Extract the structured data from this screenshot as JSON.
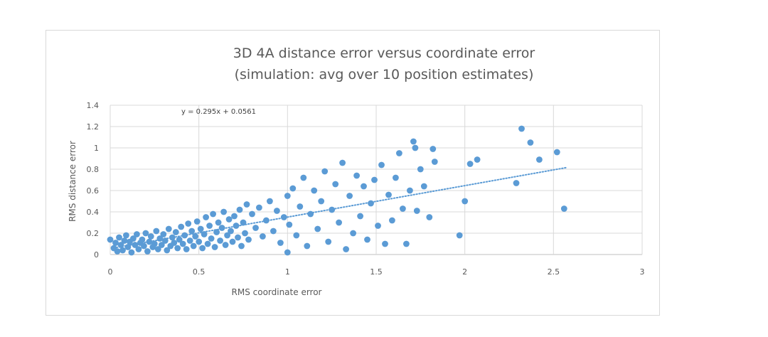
{
  "chart_data": {
    "type": "scatter",
    "title": "3D 4A distance error versus coordinate error",
    "subtitle": "(simulation: avg over 10 position estimates)",
    "xlabel": "RMS coordinate error",
    "ylabel": "RMS distance error",
    "xlim": [
      0,
      3
    ],
    "ylim": [
      0,
      1.4
    ],
    "x_ticks": [
      "0",
      "0.5",
      "1",
      "1.5",
      "2",
      "2.5",
      "3"
    ],
    "y_ticks": [
      "0",
      "0.2",
      "0.4",
      "0.6",
      "0.8",
      "1",
      "1.2",
      "1.4"
    ],
    "grid": true,
    "marker_color": "#5b9bd5",
    "trendline": {
      "type": "linear",
      "slope": 0.295,
      "intercept": 0.0561,
      "label": "y = 0.295x + 0.0561",
      "x_range": [
        0.02,
        2.57
      ],
      "style": "dotted"
    },
    "points": [
      [
        0.0,
        0.14
      ],
      [
        0.02,
        0.06
      ],
      [
        0.03,
        0.11
      ],
      [
        0.04,
        0.03
      ],
      [
        0.05,
        0.16
      ],
      [
        0.06,
        0.09
      ],
      [
        0.07,
        0.04
      ],
      [
        0.08,
        0.13
      ],
      [
        0.09,
        0.18
      ],
      [
        0.1,
        0.07
      ],
      [
        0.11,
        0.12
      ],
      [
        0.12,
        0.02
      ],
      [
        0.13,
        0.15
      ],
      [
        0.14,
        0.09
      ],
      [
        0.15,
        0.19
      ],
      [
        0.16,
        0.05
      ],
      [
        0.17,
        0.11
      ],
      [
        0.18,
        0.14
      ],
      [
        0.19,
        0.08
      ],
      [
        0.2,
        0.2
      ],
      [
        0.21,
        0.03
      ],
      [
        0.22,
        0.12
      ],
      [
        0.23,
        0.17
      ],
      [
        0.24,
        0.07
      ],
      [
        0.25,
        0.1
      ],
      [
        0.26,
        0.22
      ],
      [
        0.27,
        0.05
      ],
      [
        0.28,
        0.15
      ],
      [
        0.29,
        0.09
      ],
      [
        0.3,
        0.19
      ],
      [
        0.31,
        0.13
      ],
      [
        0.32,
        0.04
      ],
      [
        0.33,
        0.24
      ],
      [
        0.34,
        0.08
      ],
      [
        0.35,
        0.16
      ],
      [
        0.36,
        0.11
      ],
      [
        0.37,
        0.21
      ],
      [
        0.38,
        0.06
      ],
      [
        0.39,
        0.14
      ],
      [
        0.4,
        0.26
      ],
      [
        0.41,
        0.1
      ],
      [
        0.42,
        0.18
      ],
      [
        0.43,
        0.05
      ],
      [
        0.44,
        0.29
      ],
      [
        0.45,
        0.13
      ],
      [
        0.46,
        0.22
      ],
      [
        0.47,
        0.08
      ],
      [
        0.48,
        0.17
      ],
      [
        0.49,
        0.31
      ],
      [
        0.5,
        0.12
      ],
      [
        0.51,
        0.24
      ],
      [
        0.52,
        0.06
      ],
      [
        0.53,
        0.19
      ],
      [
        0.54,
        0.35
      ],
      [
        0.55,
        0.1
      ],
      [
        0.56,
        0.27
      ],
      [
        0.57,
        0.15
      ],
      [
        0.58,
        0.38
      ],
      [
        0.59,
        0.07
      ],
      [
        0.6,
        0.21
      ],
      [
        0.61,
        0.3
      ],
      [
        0.62,
        0.13
      ],
      [
        0.63,
        0.25
      ],
      [
        0.64,
        0.4
      ],
      [
        0.65,
        0.09
      ],
      [
        0.66,
        0.18
      ],
      [
        0.67,
        0.33
      ],
      [
        0.68,
        0.22
      ],
      [
        0.69,
        0.12
      ],
      [
        0.7,
        0.36
      ],
      [
        0.71,
        0.27
      ],
      [
        0.72,
        0.16
      ],
      [
        0.73,
        0.42
      ],
      [
        0.74,
        0.08
      ],
      [
        0.75,
        0.3
      ],
      [
        0.76,
        0.2
      ],
      [
        0.77,
        0.47
      ],
      [
        0.78,
        0.14
      ],
      [
        0.8,
        0.38
      ],
      [
        0.82,
        0.25
      ],
      [
        0.84,
        0.44
      ],
      [
        0.86,
        0.17
      ],
      [
        0.88,
        0.32
      ],
      [
        0.9,
        0.5
      ],
      [
        0.92,
        0.22
      ],
      [
        0.94,
        0.41
      ],
      [
        0.96,
        0.11
      ],
      [
        0.98,
        0.35
      ],
      [
        1.0,
        0.02
      ],
      [
        1.0,
        0.55
      ],
      [
        1.01,
        0.28
      ],
      [
        1.03,
        0.62
      ],
      [
        1.05,
        0.18
      ],
      [
        1.07,
        0.45
      ],
      [
        1.09,
        0.72
      ],
      [
        1.11,
        0.08
      ],
      [
        1.13,
        0.38
      ],
      [
        1.15,
        0.6
      ],
      [
        1.17,
        0.24
      ],
      [
        1.19,
        0.5
      ],
      [
        1.21,
        0.78
      ],
      [
        1.23,
        0.12
      ],
      [
        1.25,
        0.42
      ],
      [
        1.27,
        0.66
      ],
      [
        1.29,
        0.3
      ],
      [
        1.31,
        0.86
      ],
      [
        1.33,
        0.05
      ],
      [
        1.35,
        0.55
      ],
      [
        1.37,
        0.2
      ],
      [
        1.39,
        0.74
      ],
      [
        1.41,
        0.36
      ],
      [
        1.43,
        0.64
      ],
      [
        1.45,
        0.14
      ],
      [
        1.47,
        0.48
      ],
      [
        1.49,
        0.7
      ],
      [
        1.51,
        0.27
      ],
      [
        1.53,
        0.84
      ],
      [
        1.55,
        0.1
      ],
      [
        1.57,
        0.56
      ],
      [
        1.59,
        0.32
      ],
      [
        1.61,
        0.72
      ],
      [
        1.63,
        0.95
      ],
      [
        1.65,
        0.43
      ],
      [
        1.67,
        0.1
      ],
      [
        1.69,
        0.6
      ],
      [
        1.71,
        1.06
      ],
      [
        1.72,
        1.0
      ],
      [
        1.73,
        0.41
      ],
      [
        1.75,
        0.8
      ],
      [
        1.77,
        0.64
      ],
      [
        1.8,
        0.35
      ],
      [
        1.82,
        0.99
      ],
      [
        1.83,
        0.87
      ],
      [
        1.97,
        0.18
      ],
      [
        2.0,
        0.5
      ],
      [
        2.03,
        0.85
      ],
      [
        2.07,
        0.89
      ],
      [
        2.29,
        0.67
      ],
      [
        2.32,
        1.18
      ],
      [
        2.37,
        1.05
      ],
      [
        2.42,
        0.89
      ],
      [
        2.52,
        0.96
      ],
      [
        2.56,
        0.43
      ]
    ]
  }
}
